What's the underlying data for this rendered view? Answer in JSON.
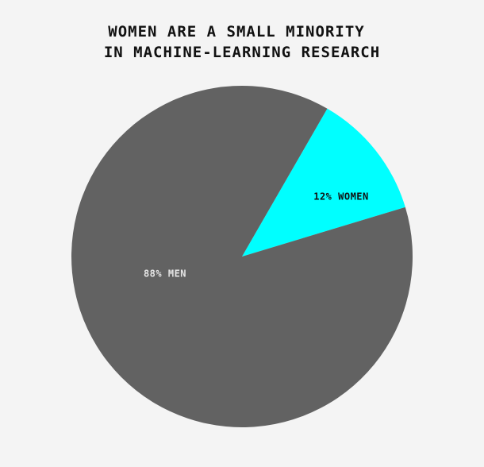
{
  "chart_data": {
    "type": "pie",
    "title": [
      "WOMEN ARE A SMALL MINORITY",
      "IN MACHINE-LEARNING RESEARCH"
    ],
    "values": [
      12,
      88
    ],
    "value_labels": [
      "12% WOMEN",
      "88% MEN"
    ],
    "colors": [
      "#00ffff",
      "#626262"
    ]
  }
}
